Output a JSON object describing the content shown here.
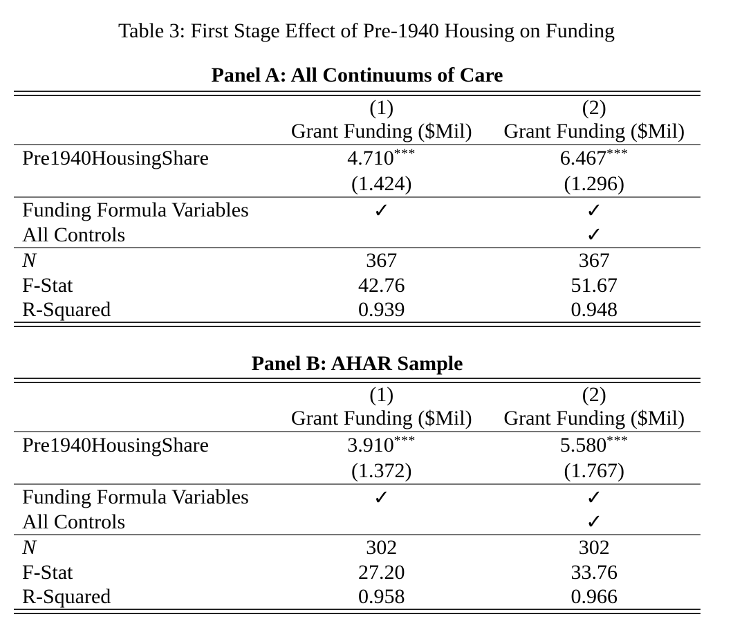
{
  "caption": "Table 3: First Stage Effect of Pre-1940 Housing on Funding",
  "panelA": {
    "title": "Panel A: All Continuums of Care",
    "col_numbers": [
      "(1)",
      "(2)"
    ],
    "col_headers": [
      "Grant Funding ($Mil)",
      "Grant Funding ($Mil)"
    ],
    "coef_label": "Pre1940HousingShare",
    "coef_values": [
      "4.710",
      "6.467"
    ],
    "coef_stars": [
      "***",
      "***"
    ],
    "std_errors": [
      "(1.424)",
      "(1.296)"
    ],
    "controls": [
      {
        "label": "Funding Formula Variables",
        "col1": "✓",
        "col2": "✓"
      },
      {
        "label": "All Controls",
        "col1": "",
        "col2": "✓"
      }
    ],
    "stats": [
      {
        "label": "N",
        "col1": "367",
        "col2": "367"
      },
      {
        "label": "F-Stat",
        "col1": "42.76",
        "col2": "51.67"
      },
      {
        "label": "R-Squared",
        "col1": "0.939",
        "col2": "0.948"
      }
    ]
  },
  "panelB": {
    "title": "Panel B: AHAR Sample",
    "col_numbers": [
      "(1)",
      "(2)"
    ],
    "col_headers": [
      "Grant Funding ($Mil)",
      "Grant Funding ($Mil)"
    ],
    "coef_label": "Pre1940HousingShare",
    "coef_values": [
      "3.910",
      "5.580"
    ],
    "coef_stars": [
      "***",
      "***"
    ],
    "std_errors": [
      "(1.372)",
      "(1.767)"
    ],
    "controls": [
      {
        "label": "Funding Formula Variables",
        "col1": "✓",
        "col2": "✓"
      },
      {
        "label": "All Controls",
        "col1": "",
        "col2": "✓"
      }
    ],
    "stats": [
      {
        "label": "N",
        "col1": "302",
        "col2": "302"
      },
      {
        "label": "F-Stat",
        "col1": "27.20",
        "col2": "33.76"
      },
      {
        "label": "R-Squared",
        "col1": "0.958",
        "col2": "0.966"
      }
    ]
  }
}
